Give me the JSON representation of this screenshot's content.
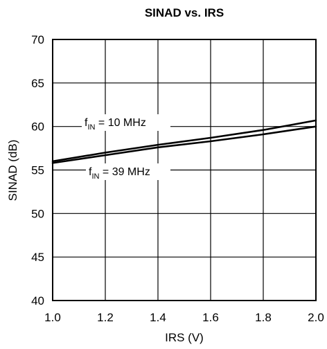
{
  "chart_data": {
    "type": "line",
    "title": "SINAD vs. IRS",
    "xlabel": "IRS (V)",
    "ylabel": "SINAD (dB)",
    "xlim": [
      1.0,
      2.0
    ],
    "ylim": [
      40,
      70
    ],
    "xticks": [
      "1.0",
      "1.2",
      "1.4",
      "1.6",
      "1.8",
      "2.0"
    ],
    "yticks": [
      "40",
      "45",
      "50",
      "55",
      "60",
      "65",
      "70"
    ],
    "grid": true,
    "series": [
      {
        "name": "f_IN = 10 MHz",
        "label_main": "f",
        "label_sub": "IN",
        "label_rest": " = 10 MHz",
        "color": "#000000",
        "x": [
          1.0,
          1.2,
          1.4,
          1.6,
          1.8,
          2.0
        ],
        "y": [
          56.0,
          57.0,
          57.9,
          58.7,
          59.6,
          60.7
        ]
      },
      {
        "name": "f_IN = 39 MHz",
        "label_main": "f",
        "label_sub": "IN",
        "label_rest": " = 39 MHz",
        "color": "#000000",
        "x": [
          1.0,
          1.2,
          1.4,
          1.6,
          1.8,
          2.0
        ],
        "y": [
          55.8,
          56.7,
          57.6,
          58.3,
          59.1,
          60.0
        ]
      }
    ]
  }
}
